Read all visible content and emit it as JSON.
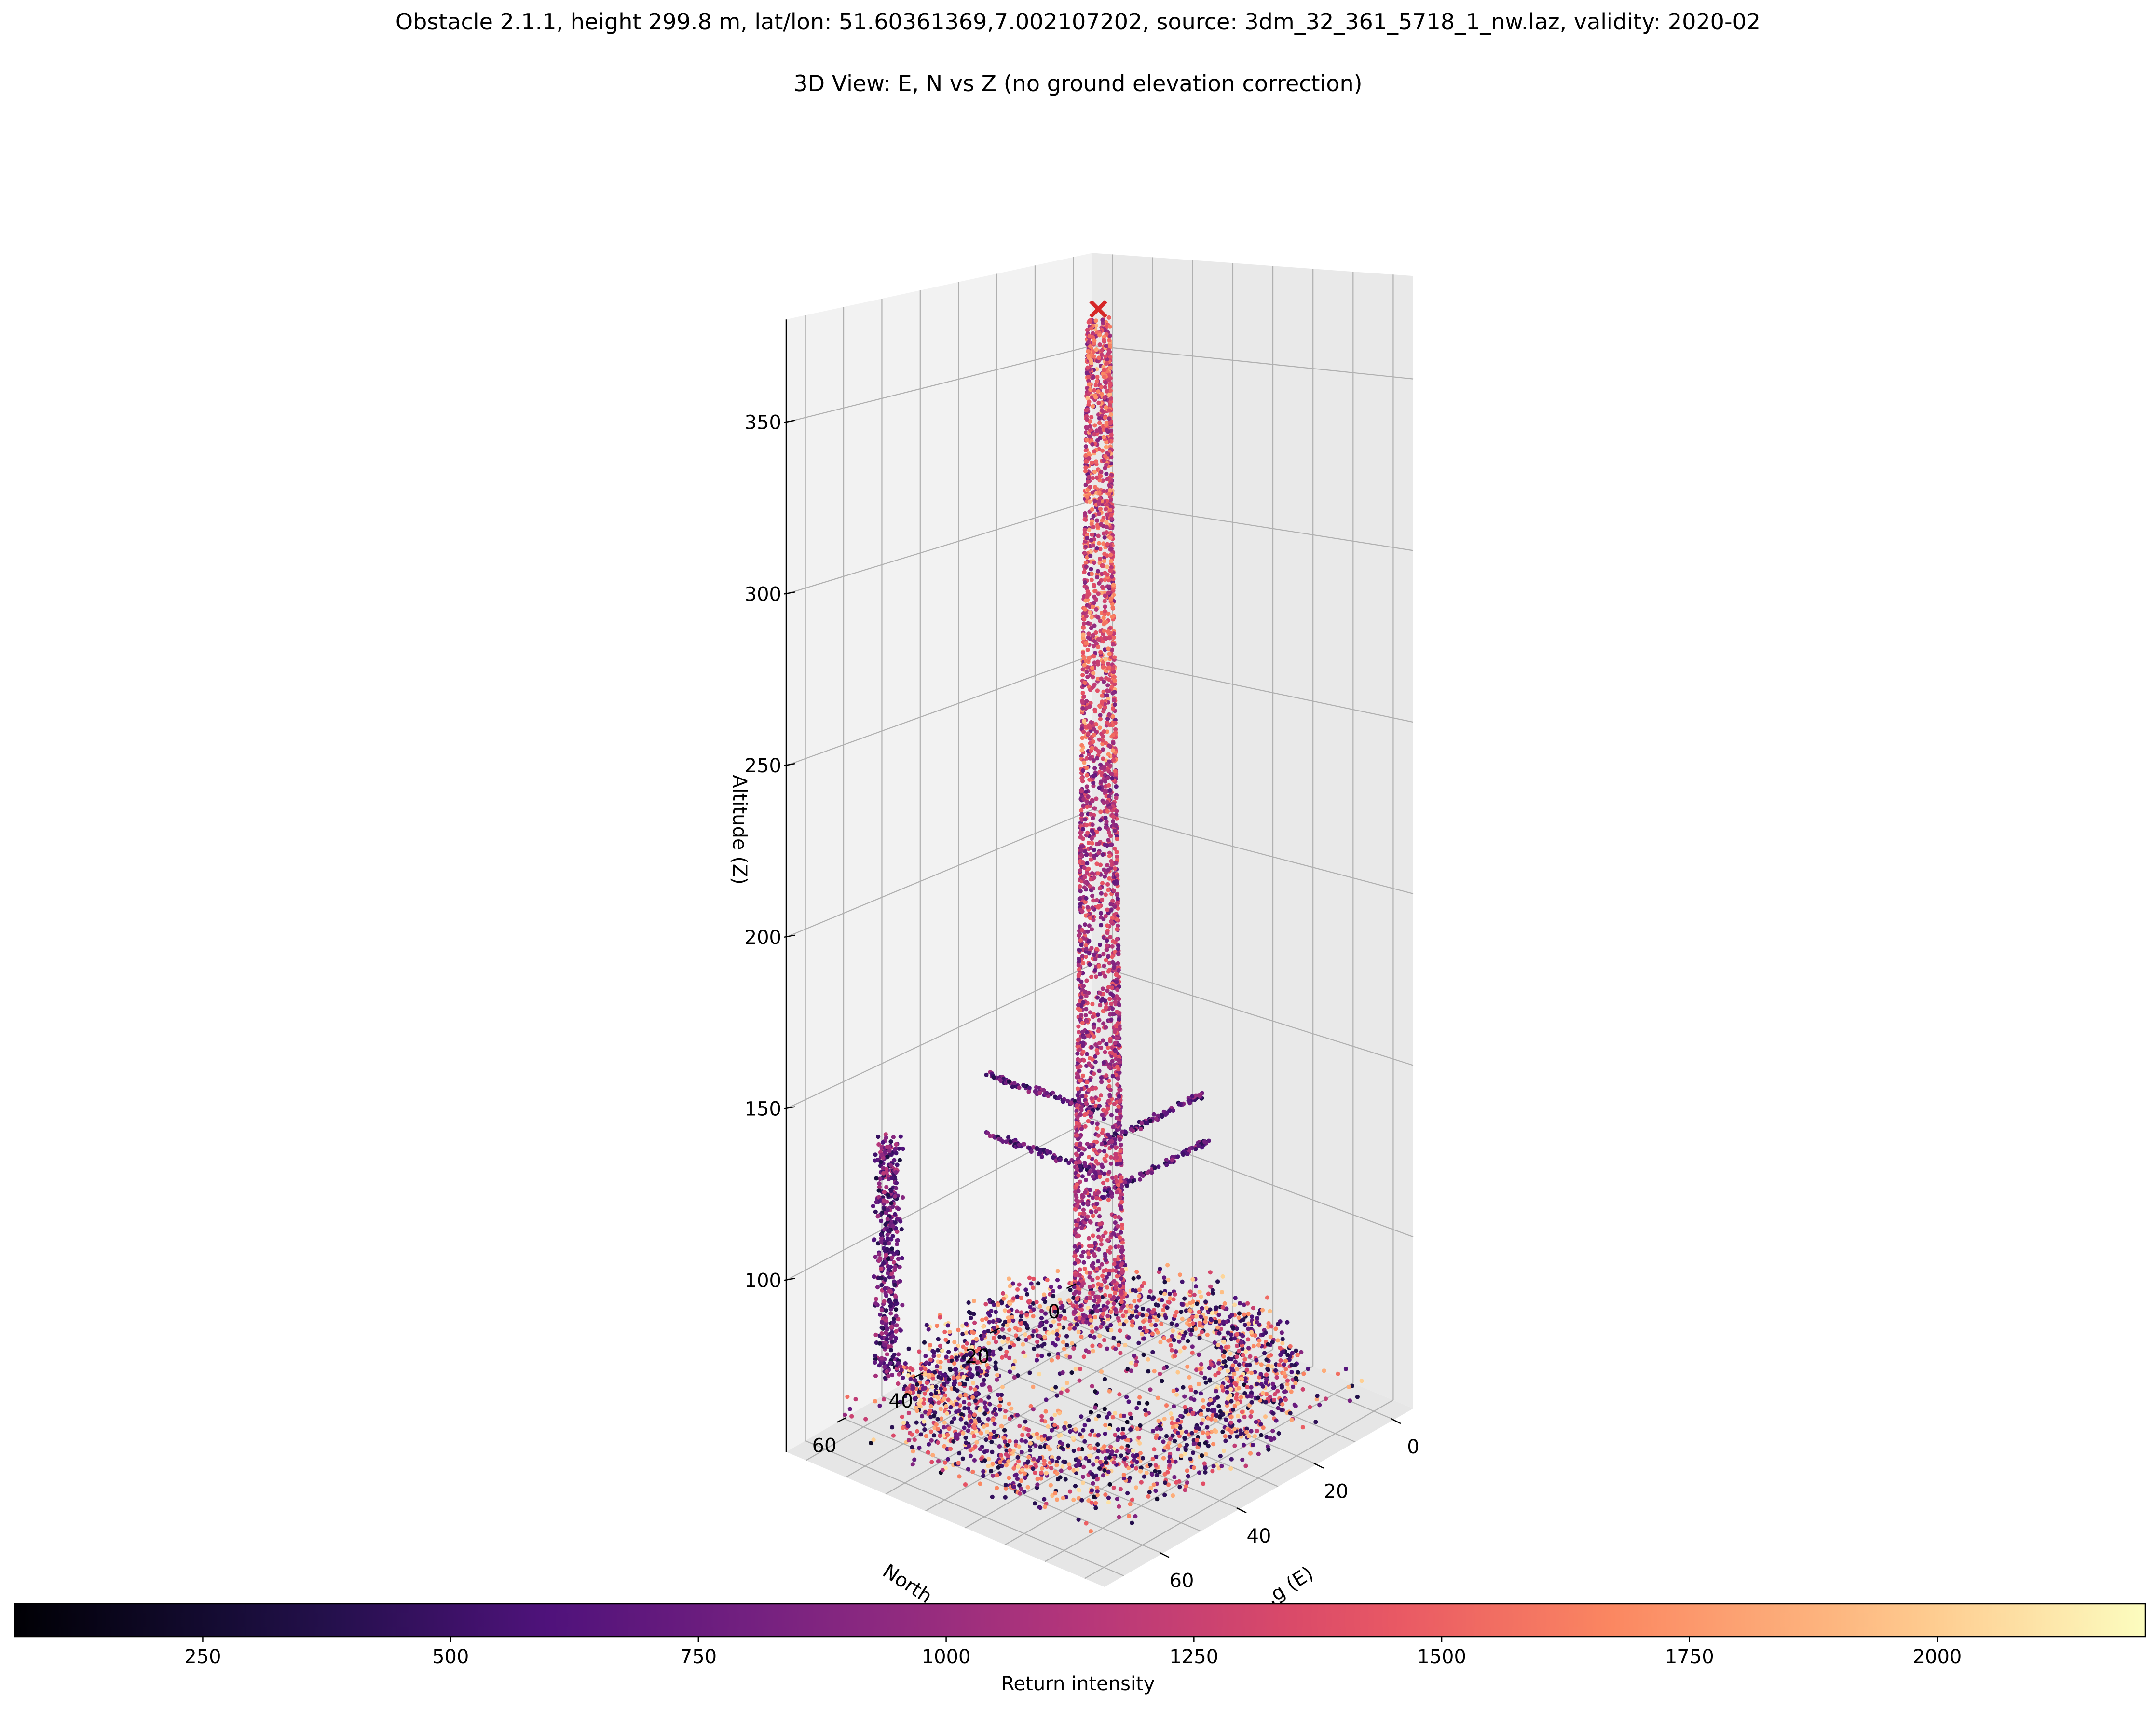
{
  "figure": {
    "suptitle": "Obstacle 2.1.1, height 299.8 m, lat/lon: 51.60361369,7.002107202, source: 3dm_32_361_5718_1_nw.laz, validity: 2020-02",
    "axes_title": "3D View: E, N vs Z (no ground elevation correction)"
  },
  "chart_data": {
    "type": "scatter",
    "projection": "3d",
    "title": "3D View: E, N vs Z (no ground elevation correction)",
    "zlabel": "Altitude (Z)",
    "xlabel_visible": "...g (E)",
    "ylabel_visible": "North...",
    "x_ticks": [
      "0",
      "20",
      "40",
      "60"
    ],
    "y_ticks": [
      "0",
      "20",
      "40",
      "60"
    ],
    "z_ticks": [
      "100",
      "150",
      "200",
      "250",
      "300",
      "350"
    ],
    "xlim": [
      -5,
      75
    ],
    "ylim": [
      -5,
      75
    ],
    "zlim": [
      50,
      380
    ],
    "grid": true,
    "colormap": "magma",
    "colorbar": {
      "label": "Return intensity",
      "ticks": [
        "250",
        "500",
        "750",
        "1000",
        "1250",
        "1500",
        "1750",
        "2000"
      ],
      "range": [
        60,
        2210
      ],
      "orientation": "horizontal",
      "placement": "bottom"
    },
    "obstacle_marker": {
      "color": "#d62728",
      "symbol": "x",
      "x": 30,
      "y": 30,
      "z": 375
    },
    "structures": [
      {
        "name": "mast",
        "x": 32,
        "y": 32,
        "z_range": [
          80,
          373
        ],
        "radius_bottom": 4.5,
        "radius_top": 2.0
      },
      {
        "name": "antenna_arms",
        "z_levels": [
          140,
          130,
          122,
          115
        ]
      },
      {
        "name": "ground_clutter",
        "z_range": [
          55,
          90
        ],
        "extent": [
          0,
          70
        ]
      }
    ]
  },
  "colors": {
    "background": "#ffffff",
    "pane_left": "#f2f2f2",
    "pane_right": "#e9e9e9",
    "pane_floor": "#e6e6e6",
    "grid": "#b0b0b0",
    "marker": "#d62728"
  }
}
